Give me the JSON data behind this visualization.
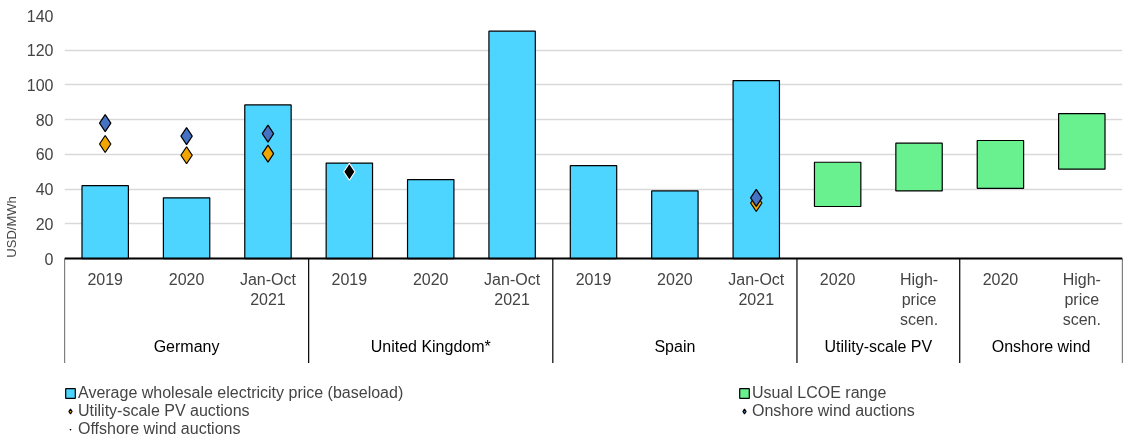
{
  "chart_data": {
    "type": "bar",
    "ylabel": "USD/MWh",
    "categories": [
      "2019",
      "2020",
      "Jan-Oct\n2021",
      "2019",
      "2020",
      "Jan-Oct\n2021",
      "2019",
      "2020",
      "Jan-Oct\n2021",
      "2020",
      "High-\nprice\nscen.",
      "2020",
      "High-\nprice\nscen."
    ],
    "series": [
      {
        "name": "Average wholesale electricity price (baseload)",
        "color": "#4dd4ff",
        "values": [
          42,
          35,
          88.5,
          55,
          45.5,
          131,
          53.5,
          39,
          102.5,
          null,
          null,
          null,
          null
        ]
      },
      {
        "name": "Usual LCOE range",
        "color": "#69f08f",
        "base": [
          null,
          null,
          null,
          null,
          null,
          null,
          null,
          null,
          null,
          30,
          39,
          40.5,
          51.5
        ],
        "values": [
          null,
          null,
          null,
          null,
          null,
          null,
          null,
          null,
          null,
          25.5,
          27.5,
          27.5,
          32
        ]
      },
      {
        "name": "Utility-scale PV auctions",
        "type": "scatter",
        "color": "#f0a500",
        "values": [
          66,
          59.5,
          60.5,
          null,
          null,
          null,
          null,
          null,
          32,
          null,
          null,
          null,
          null
        ]
      },
      {
        "name": "Onshore wind auctions",
        "type": "scatter",
        "color": "#4472c4",
        "values": [
          78,
          70.5,
          72,
          null,
          null,
          null,
          null,
          null,
          35,
          null,
          null,
          null,
          null
        ]
      },
      {
        "name": "Offshore wind auctions",
        "type": "scatter",
        "color": "#000000",
        "values": [
          null,
          null,
          null,
          50,
          null,
          null,
          null,
          null,
          null,
          null,
          null,
          null,
          null
        ]
      }
    ],
    "marker": "diamond",
    "ylim": [
      0,
      140
    ],
    "yticks": [
      0,
      20,
      40,
      60,
      80,
      100,
      120,
      140
    ],
    "grid": "y",
    "legend": "bottom",
    "annotations": [
      "Germany",
      "United Kingdom*",
      "Spain",
      "Utility-scale PV",
      "Onshore wind"
    ]
  }
}
